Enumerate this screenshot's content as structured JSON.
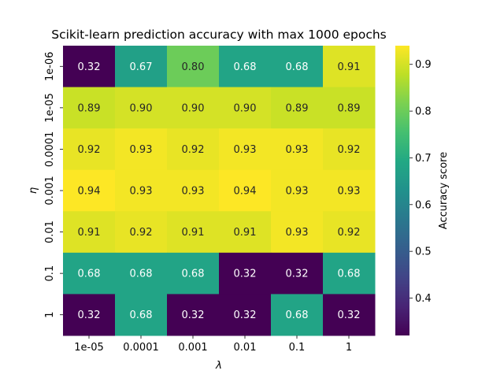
{
  "chart_data": {
    "type": "heatmap",
    "title": "Scikit-learn prediction accuracy with max 1000 epochs",
    "xlabel": "λ",
    "ylabel": "η",
    "x_categories": [
      "1e-05",
      "0.0001",
      "0.001",
      "0.01",
      "0.1",
      "1"
    ],
    "y_categories": [
      "1e-06",
      "1e-05",
      "0.0001",
      "0.001",
      "0.01",
      "0.1",
      "1"
    ],
    "values": [
      [
        0.32,
        0.67,
        0.8,
        0.68,
        0.68,
        0.91
      ],
      [
        0.89,
        0.9,
        0.9,
        0.9,
        0.89,
        0.89
      ],
      [
        0.92,
        0.93,
        0.92,
        0.93,
        0.93,
        0.92
      ],
      [
        0.94,
        0.93,
        0.93,
        0.94,
        0.93,
        0.93
      ],
      [
        0.91,
        0.92,
        0.91,
        0.91,
        0.93,
        0.92
      ],
      [
        0.68,
        0.68,
        0.68,
        0.32,
        0.32,
        0.68
      ],
      [
        0.32,
        0.68,
        0.32,
        0.32,
        0.68,
        0.32
      ]
    ],
    "colormap": "viridis",
    "colorbar": {
      "label": "Accuracy score",
      "range": [
        0.32,
        0.94
      ],
      "ticks": [
        "0.4",
        "0.5",
        "0.6",
        "0.7",
        "0.8",
        "0.9"
      ]
    },
    "annotation_format": "0.00"
  }
}
